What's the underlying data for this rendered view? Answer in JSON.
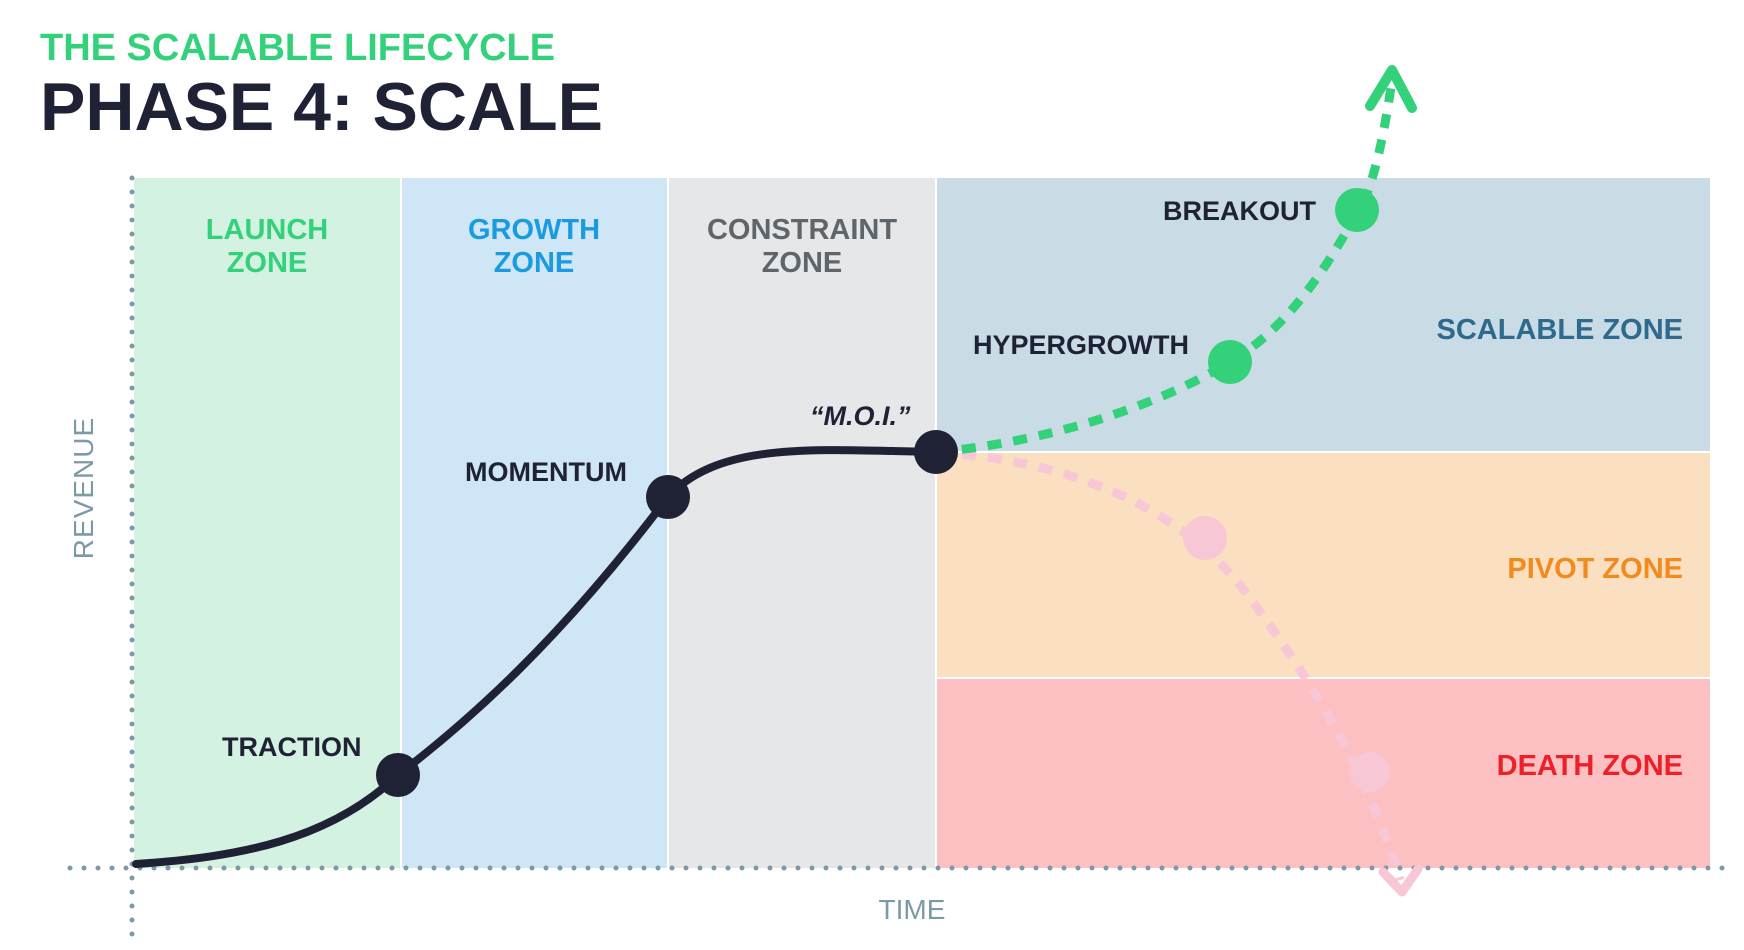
{
  "header": {
    "subtitle": "THE SCALABLE LIFECYCLE",
    "title": "PHASE 4: SCALE"
  },
  "zones": {
    "launch": {
      "line1": "LAUNCH",
      "line2": "ZONE"
    },
    "growth": {
      "line1": "GROWTH",
      "line2": "ZONE"
    },
    "constraint": {
      "line1": "CONSTRAINT",
      "line2": "ZONE"
    },
    "scalable": "SCALABLE ZONE",
    "pivot": "PIVOT ZONE",
    "death": "DEATH ZONE"
  },
  "milestones": {
    "traction": "TRACTION",
    "momentum": "MOMENTUM",
    "moi": "“M.O.I.”",
    "hypergrowth": "HYPERGROWTH",
    "breakout": "BREAKOUT"
  },
  "axes": {
    "y_label": "REVENUE",
    "x_label": "TIME"
  },
  "colors": {
    "green": "#33d17a",
    "blue": "#1a9be0",
    "gray_text": "#5f666b",
    "dark": "#1f2235",
    "steel": "#2e6a8e",
    "orange": "#f28a1e",
    "red": "#ee2027",
    "axis": "#7b9aa6",
    "launch_bg": "#d4f2e1",
    "growth_bg": "#cfe6f6",
    "constraint_bg": "#e6e7e8",
    "scalable_bg": "#c9dbe4",
    "pivot_bg": "#fadfc1",
    "death_bg": "#fcc0c2",
    "pink_path": "#f8c7d6"
  }
}
